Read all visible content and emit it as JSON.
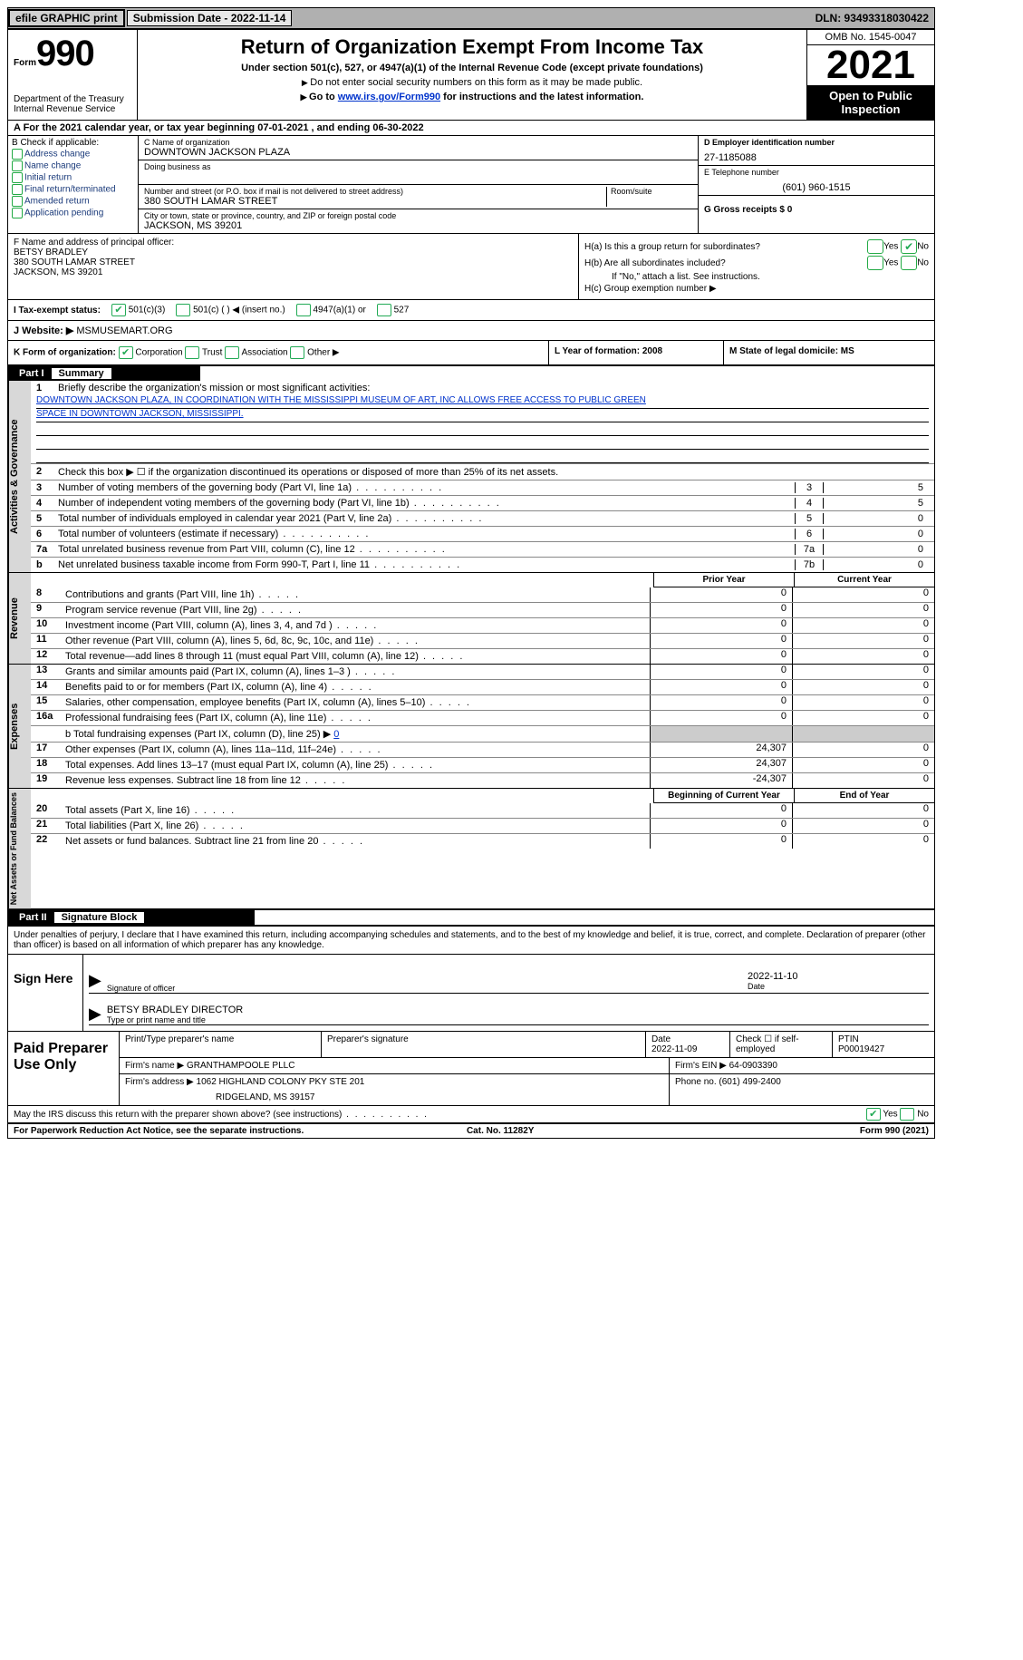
{
  "topbar": {
    "efile": "efile GRAPHIC print",
    "submission": "Submission Date - 2022-11-14",
    "dln": "DLN: 93493318030422"
  },
  "header": {
    "form_small": "Form",
    "form_big": "990",
    "title": "Return of Organization Exempt From Income Tax",
    "sub1": "Under section 501(c), 527, or 4947(a)(1) of the Internal Revenue Code (except private foundations)",
    "sub2": "Do not enter social security numbers on this form as it may be made public.",
    "sub3_pre": "Go to ",
    "sub3_link": "www.irs.gov/Form990",
    "sub3_post": " for instructions and the latest information.",
    "dept": "Department of the Treasury",
    "dept2": "Internal Revenue Service",
    "omb": "OMB No. 1545-0047",
    "year": "2021",
    "inspect1": "Open to Public",
    "inspect2": "Inspection"
  },
  "rowA": {
    "pre": "A For the 2021 calendar year, or tax year beginning ",
    "begin": "07-01-2021",
    "mid": "   , and ending ",
    "end": "06-30-2022"
  },
  "colB": {
    "title": "B Check if applicable:",
    "items": [
      "Address change",
      "Name change",
      "Initial return",
      "Final return/terminated",
      "Amended return",
      "Application pending"
    ]
  },
  "colC": {
    "name_lab": "C Name of organization",
    "name_val": "DOWNTOWN JACKSON PLAZA",
    "dba_lab": "Doing business as",
    "street_lab": "Number and street (or P.O. box if mail is not delivered to street address)",
    "room_lab": "Room/suite",
    "street_val": "380 SOUTH LAMAR STREET",
    "city_lab": "City or town, state or province, country, and ZIP or foreign postal code",
    "city_val": "JACKSON, MS  39201"
  },
  "colD": {
    "ein_lab": "D Employer identification number",
    "ein_val": "27-1185088",
    "tel_lab": "E Telephone number",
    "tel_val": "(601) 960-1515",
    "gross_lab": "G Gross receipts $ 0"
  },
  "rowF": {
    "lab": "F  Name and address of principal officer:",
    "name": "BETSY BRADLEY",
    "street": "380 SOUTH LAMAR STREET",
    "city": "JACKSON, MS  39201"
  },
  "rowH": {
    "a": "H(a)  Is this a group return for subordinates?",
    "b": "H(b)  Are all subordinates included?",
    "b2": "If \"No,\" attach a list. See instructions.",
    "c": "H(c)  Group exemption number ▶",
    "yes": "Yes",
    "no": "No"
  },
  "rowI": {
    "lab": "I   Tax-exempt status:",
    "c3": "501(c)(3)",
    "c": "501(c) (  ) ◀ (insert no.)",
    "a1": "4947(a)(1) or",
    "s527": "527"
  },
  "rowJ": {
    "lab": "J   Website: ▶",
    "val": "  MSMUSEMART.ORG"
  },
  "rowK": {
    "lab": "K Form of organization:",
    "corp": "Corporation",
    "trust": "Trust",
    "assoc": "Association",
    "other": "Other ▶"
  },
  "rowL": {
    "lab": "L Year of formation: 2008"
  },
  "rowM": {
    "lab": "M State of legal domicile: MS"
  },
  "part1": {
    "label": "Part I",
    "title": "Summary"
  },
  "vtabs": {
    "ag": "Activities & Governance",
    "rev": "Revenue",
    "exp": "Expenses",
    "net": "Net Assets or Fund Balances"
  },
  "p1": {
    "l1": "Briefly describe the organization's mission or most significant activities:",
    "mission1": "DOWNTOWN JACKSON PLAZA, IN COORDINATION WITH THE MISSISSIPPI MUSEUM OF ART, INC ALLOWS FREE ACCESS TO PUBLIC GREEN",
    "mission2": "SPACE IN DOWNTOWN JACKSON, MISSISSIPPI.",
    "l2": "Check this box ▶ ☐  if the organization discontinued its operations or disposed of more than 25% of its net assets.",
    "lines": [
      {
        "n": "3",
        "t": "Number of voting members of the governing body (Part VI, line 1a)",
        "b": "3",
        "v": "5"
      },
      {
        "n": "4",
        "t": "Number of independent voting members of the governing body (Part VI, line 1b)",
        "b": "4",
        "v": "5"
      },
      {
        "n": "5",
        "t": "Total number of individuals employed in calendar year 2021 (Part V, line 2a)",
        "b": "5",
        "v": "0"
      },
      {
        "n": "6",
        "t": "Total number of volunteers (estimate if necessary)",
        "b": "6",
        "v": "0"
      },
      {
        "n": "7a",
        "t": "Total unrelated business revenue from Part VIII, column (C), line 12",
        "b": "7a",
        "v": "0"
      },
      {
        "n": "b",
        "t": "Net unrelated business taxable income from Form 990-T, Part I, line 11",
        "b": "7b",
        "v": "0"
      }
    ]
  },
  "table": {
    "h1": "Prior Year",
    "h2": "Current Year",
    "h3": "Beginning of Current Year",
    "h4": "End of Year",
    "rev": [
      {
        "n": "8",
        "t": "Contributions and grants (Part VIII, line 1h)",
        "p": "0",
        "c": "0"
      },
      {
        "n": "9",
        "t": "Program service revenue (Part VIII, line 2g)",
        "p": "0",
        "c": "0"
      },
      {
        "n": "10",
        "t": "Investment income (Part VIII, column (A), lines 3, 4, and 7d )",
        "p": "0",
        "c": "0"
      },
      {
        "n": "11",
        "t": "Other revenue (Part VIII, column (A), lines 5, 6d, 8c, 9c, 10c, and 11e)",
        "p": "0",
        "c": "0"
      },
      {
        "n": "12",
        "t": "Total revenue—add lines 8 through 11 (must equal Part VIII, column (A), line 12)",
        "p": "0",
        "c": "0"
      }
    ],
    "exp": [
      {
        "n": "13",
        "t": "Grants and similar amounts paid (Part IX, column (A), lines 1–3 )",
        "p": "0",
        "c": "0"
      },
      {
        "n": "14",
        "t": "Benefits paid to or for members (Part IX, column (A), line 4)",
        "p": "0",
        "c": "0"
      },
      {
        "n": "15",
        "t": "Salaries, other compensation, employee benefits (Part IX, column (A), lines 5–10)",
        "p": "0",
        "c": "0"
      },
      {
        "n": "16a",
        "t": "Professional fundraising fees (Part IX, column (A), line 11e)",
        "p": "0",
        "c": "0"
      }
    ],
    "l16b_pre": "b   Total fundraising expenses (Part IX, column (D), line 25) ▶",
    "l16b_val": "0",
    "exp2": [
      {
        "n": "17",
        "t": "Other expenses (Part IX, column (A), lines 11a–11d, 11f–24e)",
        "p": "24,307",
        "c": "0"
      },
      {
        "n": "18",
        "t": "Total expenses. Add lines 13–17 (must equal Part IX, column (A), line 25)",
        "p": "24,307",
        "c": "0"
      },
      {
        "n": "19",
        "t": "Revenue less expenses. Subtract line 18 from line 12",
        "p": "-24,307",
        "c": "0"
      }
    ],
    "net": [
      {
        "n": "20",
        "t": "Total assets (Part X, line 16)",
        "p": "0",
        "c": "0"
      },
      {
        "n": "21",
        "t": "Total liabilities (Part X, line 26)",
        "p": "0",
        "c": "0"
      },
      {
        "n": "22",
        "t": "Net assets or fund balances. Subtract line 21 from line 20",
        "p": "0",
        "c": "0"
      }
    ]
  },
  "part2": {
    "label": "Part II",
    "title": "Signature Block"
  },
  "sig": {
    "pen": "Under penalties of perjury, I declare that I have examined this return, including accompanying schedules and statements, and to the best of my knowledge and belief, it is true, correct, and complete. Declaration of preparer (other than officer) is based on all information of which preparer has any knowledge.",
    "sign_here": "Sign Here",
    "sig_of": "Signature of officer",
    "date": "2022-11-10",
    "date_lab": "Date",
    "name": "BETSY BRADLEY  DIRECTOR",
    "name_lab": "Type or print name and title"
  },
  "prep": {
    "title": "Paid Preparer Use Only",
    "h1": "Print/Type preparer's name",
    "h2": "Preparer's signature",
    "h3_lab": "Date",
    "h3_val": "2022-11-09",
    "h4": "Check ☐ if self-employed",
    "h5_lab": "PTIN",
    "h5_val": "P00019427",
    "firm_lab": "Firm's name    ▶",
    "firm_val": "GRANTHAMPOOLE PLLC",
    "ein_lab": "Firm's EIN ▶",
    "ein_val": "64-0903390",
    "addr_lab": "Firm's address ▶",
    "addr_val": "1062 HIGHLAND COLONY PKY STE 201",
    "addr_val2": "RIDGELAND, MS  39157",
    "phone_lab": "Phone no.",
    "phone_val": "(601) 499-2400"
  },
  "footer": {
    "q": "May the IRS discuss this return with the preparer shown above? (see instructions)",
    "yes": "Yes",
    "no": "No",
    "pra": "For Paperwork Reduction Act Notice, see the separate instructions.",
    "cat": "Cat. No. 11282Y",
    "form": "Form 990 (2021)"
  }
}
